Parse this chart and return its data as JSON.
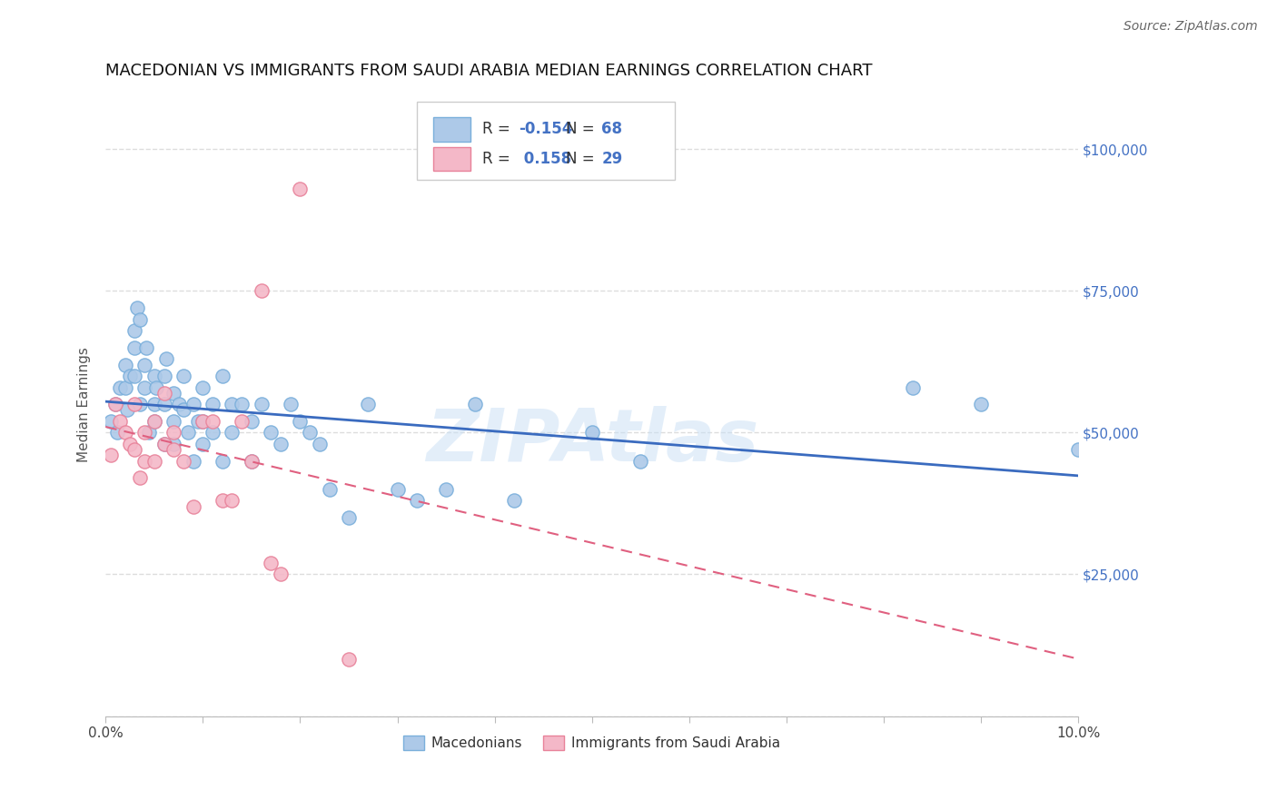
{
  "title": "MACEDONIAN VS IMMIGRANTS FROM SAUDI ARABIA MEDIAN EARNINGS CORRELATION CHART",
  "source": "Source: ZipAtlas.com",
  "ylabel": "Median Earnings",
  "xlim": [
    0.0,
    0.1
  ],
  "ylim": [
    0,
    110000
  ],
  "yticks": [
    0,
    25000,
    50000,
    75000,
    100000
  ],
  "ytick_labels": [
    "",
    "$25,000",
    "$50,000",
    "$75,000",
    "$100,000"
  ],
  "xticks": [
    0.0,
    0.01,
    0.02,
    0.03,
    0.04,
    0.05,
    0.06,
    0.07,
    0.08,
    0.09,
    0.1
  ],
  "xtick_labels": [
    "0.0%",
    "",
    "",
    "",
    "",
    "",
    "",
    "",
    "",
    "",
    "10.0%"
  ],
  "macedonian_color": "#adc9e8",
  "saudi_color": "#f4b8c8",
  "macedonian_edge": "#7aafdb",
  "saudi_edge": "#e8829a",
  "trend_macedonian_color": "#3a6bbf",
  "trend_saudi_color": "#e06080",
  "r_macedonian": -0.154,
  "n_macedonian": 68,
  "r_saudi": 0.158,
  "n_saudi": 29,
  "legend_macedonians": "Macedonians",
  "legend_saudi": "Immigrants from Saudi Arabia",
  "macedonian_x": [
    0.0005,
    0.001,
    0.0012,
    0.0015,
    0.002,
    0.002,
    0.0022,
    0.0025,
    0.003,
    0.003,
    0.003,
    0.0032,
    0.0035,
    0.0035,
    0.004,
    0.004,
    0.0042,
    0.0045,
    0.005,
    0.005,
    0.005,
    0.0052,
    0.006,
    0.006,
    0.006,
    0.0062,
    0.007,
    0.007,
    0.007,
    0.0075,
    0.008,
    0.008,
    0.0085,
    0.009,
    0.009,
    0.0095,
    0.01,
    0.01,
    0.01,
    0.011,
    0.011,
    0.012,
    0.012,
    0.013,
    0.013,
    0.014,
    0.015,
    0.015,
    0.016,
    0.017,
    0.018,
    0.019,
    0.02,
    0.021,
    0.022,
    0.023,
    0.025,
    0.027,
    0.03,
    0.032,
    0.035,
    0.038,
    0.042,
    0.05,
    0.055,
    0.083,
    0.09,
    0.1
  ],
  "macedonian_y": [
    52000,
    55000,
    50000,
    58000,
    62000,
    58000,
    54000,
    60000,
    68000,
    65000,
    60000,
    72000,
    70000,
    55000,
    62000,
    58000,
    65000,
    50000,
    60000,
    55000,
    52000,
    58000,
    60000,
    55000,
    48000,
    63000,
    57000,
    52000,
    48000,
    55000,
    60000,
    54000,
    50000,
    55000,
    45000,
    52000,
    58000,
    52000,
    48000,
    55000,
    50000,
    60000,
    45000,
    55000,
    50000,
    55000,
    52000,
    45000,
    55000,
    50000,
    48000,
    55000,
    52000,
    50000,
    48000,
    40000,
    35000,
    55000,
    40000,
    38000,
    40000,
    55000,
    38000,
    50000,
    45000,
    58000,
    55000,
    47000
  ],
  "saudi_x": [
    0.0005,
    0.001,
    0.0015,
    0.002,
    0.0025,
    0.003,
    0.003,
    0.0035,
    0.004,
    0.004,
    0.005,
    0.005,
    0.006,
    0.006,
    0.007,
    0.007,
    0.008,
    0.009,
    0.01,
    0.011,
    0.012,
    0.013,
    0.014,
    0.015,
    0.016,
    0.017,
    0.018,
    0.02,
    0.025
  ],
  "saudi_y": [
    46000,
    55000,
    52000,
    50000,
    48000,
    55000,
    47000,
    42000,
    50000,
    45000,
    52000,
    45000,
    57000,
    48000,
    50000,
    47000,
    45000,
    37000,
    52000,
    52000,
    38000,
    38000,
    52000,
    45000,
    75000,
    27000,
    25000,
    93000,
    10000
  ],
  "watermark_text": "ZIPAtlas",
  "watermark_color": "#c8dff5",
  "watermark_alpha": 0.5,
  "background_color": "#ffffff",
  "grid_color": "#dddddd",
  "blue_color": "#4472c4",
  "title_fontsize": 13,
  "label_fontsize": 11,
  "tick_fontsize": 11,
  "source_fontsize": 10
}
